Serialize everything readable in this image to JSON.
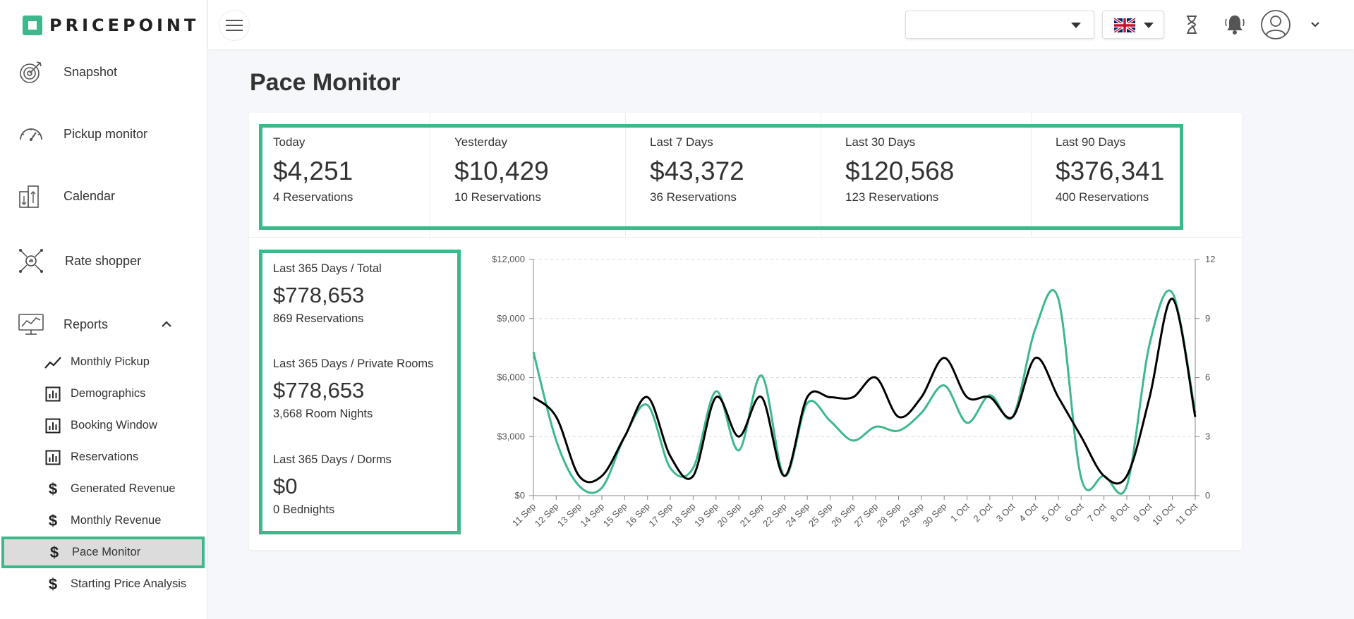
{
  "sidebar": {
    "logo": "PRICEPOINT",
    "nav": [
      {
        "label": "Snapshot",
        "icon": "target-icon"
      },
      {
        "label": "Pickup monitor",
        "icon": "speedometer-icon"
      },
      {
        "label": "Calendar",
        "icon": "buildings-icon"
      },
      {
        "label": "Rate shopper",
        "icon": "network-icon"
      },
      {
        "label": "Reports",
        "icon": "monitor-chart-icon"
      }
    ],
    "sub": [
      {
        "label": "Monthly Pickup",
        "icon": "trend-line-icon"
      },
      {
        "label": "Demographics",
        "icon": "bar-chart-icon"
      },
      {
        "label": "Booking Window",
        "icon": "bar-chart-icon"
      },
      {
        "label": "Reservations",
        "icon": "bar-chart-icon"
      },
      {
        "label": "Generated Revenue",
        "icon": "dollar-icon",
        "glyph": "$"
      },
      {
        "label": "Monthly Revenue",
        "icon": "dollar-icon",
        "glyph": "$"
      },
      {
        "label": "Pace Monitor",
        "icon": "dollar-icon",
        "glyph": "$",
        "active": true
      },
      {
        "label": "Starting Price Analysis",
        "icon": "dollar-icon",
        "glyph": "$"
      }
    ]
  },
  "topbar": {
    "property_select": "",
    "language": "English (UK)"
  },
  "page": {
    "title": "Pace Monitor"
  },
  "stats": [
    {
      "label": "Today",
      "value": "$4,251",
      "sub": "4 Reservations"
    },
    {
      "label": "Yesterday",
      "value": "$10,429",
      "sub": "10 Reservations"
    },
    {
      "label": "Last 7 Days",
      "value": "$43,372",
      "sub": "36 Reservations"
    },
    {
      "label": "Last 30 Days",
      "value": "$120,568",
      "sub": "123 Reservations"
    },
    {
      "label": "Last 90 Days",
      "value": "$376,341",
      "sub": "400 Reservations"
    }
  ],
  "yearly": [
    {
      "label": "Last 365 Days / Total",
      "value": "$778,653",
      "sub": "869 Reservations"
    },
    {
      "label": "Last 365 Days / Private Rooms",
      "value": "$778,653",
      "sub": "3,668 Room Nights"
    },
    {
      "label": "Last 365 Days / Dorms",
      "value": "$0",
      "sub": "0 Bednights"
    }
  ],
  "colors": {
    "accent": "#3cb98a",
    "revenue_line": "#3cb98a",
    "reservations_line": "#000000"
  },
  "chart_data": {
    "type": "line",
    "categories": [
      "11 Sep",
      "12 Sep",
      "13 Sep",
      "14 Sep",
      "15 Sep",
      "16 Sep",
      "17 Sep",
      "18 Sep",
      "19 Sep",
      "20 Sep",
      "21 Sep",
      "22 Sep",
      "24 Sep",
      "25 Sep",
      "26 Sep",
      "27 Sep",
      "28 Sep",
      "29 Sep",
      "30 Sep",
      "1 Oct",
      "2 Oct",
      "3 Oct",
      "4 Oct",
      "5 Oct",
      "6 Oct",
      "7 Oct",
      "8 Oct",
      "9 Oct",
      "10 Oct",
      "11 Oct"
    ],
    "left_axis": {
      "ticks": [
        "$0",
        "$3,000",
        "$6,000",
        "$9,000",
        "$12,000"
      ],
      "ylim": [
        0,
        12000
      ]
    },
    "right_axis": {
      "ticks": [
        "0",
        "3",
        "6",
        "9",
        "12"
      ],
      "ylim": [
        0,
        12
      ]
    },
    "grid": true,
    "series": [
      {
        "axis": "left",
        "color": "#3cb98a",
        "values": [
          7300,
          2800,
          500,
          400,
          3000,
          4600,
          1400,
          1400,
          5300,
          2300,
          6100,
          1000,
          4700,
          3800,
          2800,
          3500,
          3300,
          4200,
          5600,
          3700,
          5100,
          4000,
          8500,
          10000,
          900,
          1000,
          500,
          7700,
          10300,
          4200
        ]
      },
      {
        "axis": "right",
        "color": "#000000",
        "values": [
          5,
          4,
          1,
          1,
          3,
          5,
          2,
          1,
          5,
          3,
          5,
          1,
          5,
          5,
          5,
          6,
          4,
          5,
          7,
          5,
          5,
          4,
          7,
          5,
          3,
          1,
          1,
          5,
          10,
          4
        ]
      }
    ]
  }
}
